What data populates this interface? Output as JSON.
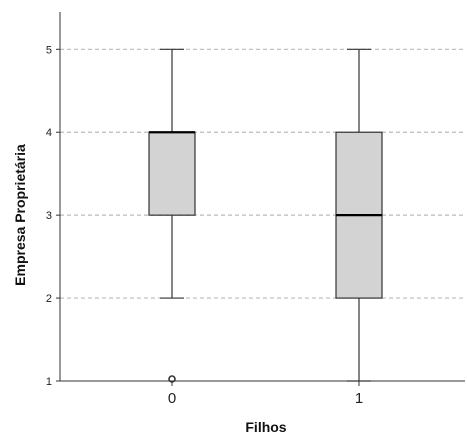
{
  "chart_data": {
    "type": "boxplot",
    "xlabel": "Filhos",
    "ylabel": "Empresa Proprietária",
    "ylim": [
      1,
      5.45
    ],
    "yticks": [
      1,
      2,
      3,
      4,
      5
    ],
    "grid": "horizontal-dashed",
    "categories": [
      "0",
      "1"
    ],
    "boxes": [
      {
        "category": "0",
        "whisker_low": 2,
        "q1": 3,
        "median": 4,
        "q3": 4,
        "whisker_high": 5,
        "outliers": [
          1
        ]
      },
      {
        "category": "1",
        "whisker_low": 1,
        "q1": 2,
        "median": 3,
        "q3": 4,
        "whisker_high": 5,
        "outliers": []
      }
    ],
    "colors": {
      "box_fill": "#d3d3d3",
      "stroke": "#333333",
      "grid": "#bbbbbb"
    }
  }
}
